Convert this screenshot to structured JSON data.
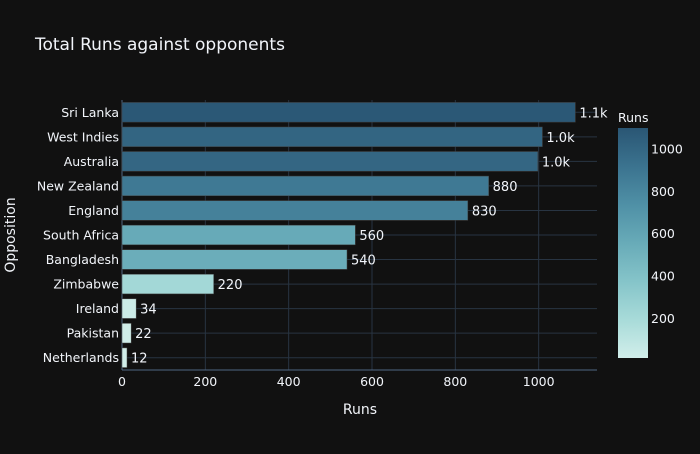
{
  "chart_data": {
    "type": "bar",
    "orientation": "horizontal",
    "title": "Total Runs against opponents",
    "xlabel": "Runs",
    "ylabel": "Opposition",
    "categories": [
      "Sri Lanka",
      "West Indies",
      "Australia",
      "New Zealand",
      "England",
      "South Africa",
      "Bangladesh",
      "Zimbabwe",
      "Ireland",
      "Pakistan",
      "Netherlands"
    ],
    "values": [
      1088,
      1009,
      998,
      880,
      830,
      560,
      540,
      220,
      34,
      22,
      12
    ],
    "data_labels": [
      "1.1k",
      "1.0k",
      "1.0k",
      "880",
      "830",
      "560",
      "540",
      "220",
      "34",
      "22",
      "12"
    ],
    "xlim": [
      0,
      1140
    ],
    "xticks": [
      0,
      200,
      400,
      600,
      800,
      1000
    ],
    "grid": true,
    "colorbar": {
      "title": "Runs",
      "range": [
        12,
        1100
      ],
      "ticks": [
        200,
        400,
        600,
        800,
        1000
      ],
      "colors": [
        "#d1eeea",
        "#a8dbd9",
        "#85c4c9",
        "#68abb8",
        "#4f90a6",
        "#3b738f",
        "#2a5674"
      ]
    }
  }
}
